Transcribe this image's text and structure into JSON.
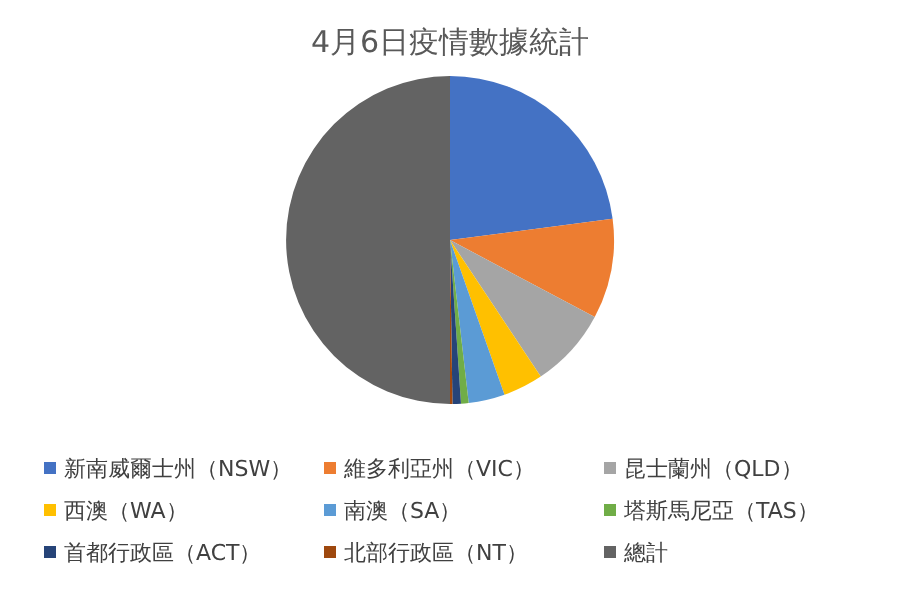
{
  "chart_data": {
    "type": "pie",
    "title": "4月6日疫情數據統計",
    "categories": [
      "新南威爾士州（NSW）",
      "維多利亞州（VIC）",
      "昆士蘭州（QLD）",
      "西澳（WA）",
      "南澳（SA）",
      "塔斯馬尼亞（TAS）",
      "首都行政區（ACT）",
      "北部行政區（NT）",
      "總計"
    ],
    "values": [
      22.93,
      9.86,
      7.88,
      3.94,
      3.57,
      0.75,
      0.83,
      0.24,
      50
    ],
    "colors": [
      "#4472c4",
      "#ed7d31",
      "#a5a5a5",
      "#ffc000",
      "#5b9bd5",
      "#70ad47",
      "#264478",
      "#9e480e",
      "#636363"
    ],
    "legend": "bottom"
  }
}
